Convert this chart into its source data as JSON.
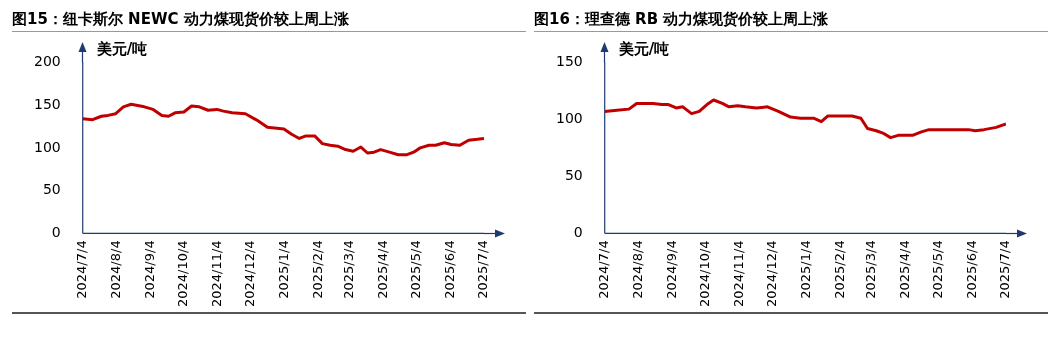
{
  "chart_data": [
    {
      "type": "line",
      "title": "图15：纽卡斯尔 NEWC 动力煤现货价较上周上涨",
      "ylabel": "美元/吨",
      "x": [
        "2024-07-04",
        "2024-07-13",
        "2024-07-21",
        "2024-07-27",
        "2024-08-03",
        "2024-08-10",
        "2024-08-17",
        "2024-08-29",
        "2024-09-06",
        "2024-09-14",
        "2024-09-20",
        "2024-09-26",
        "2024-10-04",
        "2024-10-11",
        "2024-10-18",
        "2024-10-26",
        "2024-11-03",
        "2024-11-09",
        "2024-11-17",
        "2024-11-29",
        "2024-12-10",
        "2024-12-19",
        "2025-01-03",
        "2025-01-10",
        "2025-01-17",
        "2025-01-23",
        "2025-01-31",
        "2025-02-07",
        "2025-02-14",
        "2025-02-21",
        "2025-02-28",
        "2025-03-07",
        "2025-03-14",
        "2025-03-20",
        "2025-03-26",
        "2025-04-01",
        "2025-04-09",
        "2025-04-17",
        "2025-04-25",
        "2025-05-01",
        "2025-05-07",
        "2025-05-15",
        "2025-05-21",
        "2025-05-29",
        "2025-06-04",
        "2025-06-12",
        "2025-06-20",
        "2025-06-28",
        "2025-07-04"
      ],
      "series": [
        {
          "color": "#c00000",
          "values": [
            134,
            133,
            137,
            138,
            140,
            148,
            151,
            148,
            145,
            138,
            137,
            141,
            142,
            149,
            148,
            144,
            145,
            143,
            141,
            140,
            132,
            124,
            122,
            116,
            111,
            114,
            114,
            105,
            103,
            102,
            98,
            96,
            101,
            94,
            95,
            98,
            95,
            92,
            92,
            95,
            100,
            103,
            103,
            106,
            104,
            103,
            109,
            110,
            111
          ]
        }
      ],
      "xlim": [
        "2024-07-04",
        "2025-07-04"
      ],
      "xticks": [
        {
          "value": "2024-07-04",
          "label": "2024/7/4"
        },
        {
          "value": "2024-08-04",
          "label": "2024/8/4"
        },
        {
          "value": "2024-09-04",
          "label": "2024/9/4"
        },
        {
          "value": "2024-10-04",
          "label": "2024/10/4"
        },
        {
          "value": "2024-11-04",
          "label": "2024/11/4"
        },
        {
          "value": "2024-12-04",
          "label": "2024/12/4"
        },
        {
          "value": "2025-01-04",
          "label": "2025/1/4"
        },
        {
          "value": "2025-02-04",
          "label": "2025/2/4"
        },
        {
          "value": "2025-03-04",
          "label": "2025/3/4"
        },
        {
          "value": "2025-04-04",
          "label": "2025/4/4"
        },
        {
          "value": "2025-05-04",
          "label": "2025/5/4"
        },
        {
          "value": "2025-06-04",
          "label": "2025/6/4"
        },
        {
          "value": "2025-07-04",
          "label": "2025/7/4"
        }
      ],
      "ylim": [
        0,
        200
      ],
      "yticks": [
        0,
        50,
        100,
        150,
        200
      ],
      "grid": false,
      "legend": false
    },
    {
      "type": "line",
      "title": "图16：理查德 RB 动力煤现货价较上周上涨",
      "ylabel": "美元/吨",
      "x": [
        "2024-07-04",
        "2024-07-15",
        "2024-07-26",
        "2024-08-02",
        "2024-08-17",
        "2024-08-25",
        "2024-08-31",
        "2024-09-07",
        "2024-09-13",
        "2024-09-21",
        "2024-09-28",
        "2024-10-05",
        "2024-10-11",
        "2024-10-19",
        "2024-10-25",
        "2024-11-02",
        "2024-11-09",
        "2024-11-19",
        "2024-11-29",
        "2024-12-09",
        "2024-12-20",
        "2024-12-29",
        "2025-01-10",
        "2025-01-17",
        "2025-01-23",
        "2025-02-03",
        "2025-02-14",
        "2025-02-22",
        "2025-02-28",
        "2025-03-08",
        "2025-03-14",
        "2025-03-21",
        "2025-03-28",
        "2025-04-10",
        "2025-04-18",
        "2025-04-25",
        "2025-05-09",
        "2025-05-31",
        "2025-06-06",
        "2025-06-14",
        "2025-06-25",
        "2025-07-04"
      ],
      "series": [
        {
          "color": "#c00000",
          "values": [
            107,
            108,
            109,
            114,
            114,
            113,
            113,
            110,
            111,
            105,
            107,
            113,
            117,
            114,
            111,
            112,
            111,
            110,
            111,
            107,
            102,
            101,
            101,
            98,
            103,
            103,
            103,
            101,
            92,
            90,
            88,
            84,
            86,
            86,
            89,
            91,
            91,
            91,
            90,
            91,
            93,
            96
          ]
        }
      ],
      "xlim": [
        "2024-07-04",
        "2025-07-04"
      ],
      "xticks": [
        {
          "value": "2024-07-04",
          "label": "2024/7/4"
        },
        {
          "value": "2024-08-04",
          "label": "2024/8/4"
        },
        {
          "value": "2024-09-04",
          "label": "2024/9/4"
        },
        {
          "value": "2024-10-04",
          "label": "2024/10/4"
        },
        {
          "value": "2024-11-04",
          "label": "2024/11/4"
        },
        {
          "value": "2024-12-04",
          "label": "2024/12/4"
        },
        {
          "value": "2025-01-04",
          "label": "2025/1/4"
        },
        {
          "value": "2025-02-04",
          "label": "2025/2/4"
        },
        {
          "value": "2025-03-04",
          "label": "2025/3/4"
        },
        {
          "value": "2025-04-04",
          "label": "2025/4/4"
        },
        {
          "value": "2025-05-04",
          "label": "2025/5/4"
        },
        {
          "value": "2025-06-04",
          "label": "2025/6/4"
        },
        {
          "value": "2025-07-04",
          "label": "2025/7/4"
        }
      ],
      "ylim": [
        0,
        150
      ],
      "yticks": [
        0,
        50,
        100,
        150
      ],
      "grid": false,
      "legend": false
    }
  ]
}
